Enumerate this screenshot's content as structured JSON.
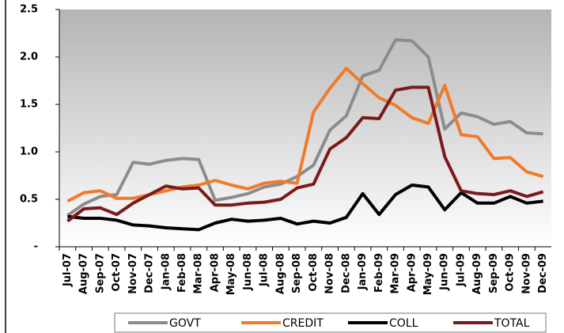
{
  "chart_data": {
    "type": "line",
    "categories": [
      "Jul-07",
      "Aug-07",
      "Sep-07",
      "Oct-07",
      "Nov-07",
      "Dec-07",
      "Jan-08",
      "Feb-08",
      "Mar-08",
      "Apr-08",
      "May-08",
      "Jun-08",
      "Jul-08",
      "Aug-08",
      "Sep-08",
      "Oct-08",
      "Nov-08",
      "Dec-08",
      "Jan-09",
      "Feb-09",
      "Mar-09",
      "Apr-09",
      "May-09",
      "Jun-09",
      "Jul-09",
      "Aug-09",
      "Sep-09",
      "Oct-09",
      "Nov-09",
      "Dec-09"
    ],
    "series": [
      {
        "name": "GOVT",
        "color": "#8c8c8c",
        "values": [
          0.33,
          0.45,
          0.53,
          0.55,
          0.89,
          0.87,
          0.91,
          0.93,
          0.92,
          0.49,
          0.52,
          0.56,
          0.63,
          0.66,
          0.74,
          0.86,
          1.23,
          1.38,
          1.8,
          1.86,
          2.18,
          2.17,
          2.0,
          1.24,
          1.41,
          1.37,
          1.29,
          1.32,
          1.2,
          1.19
        ]
      },
      {
        "name": "CREDIT",
        "color": "#f07b2a",
        "values": [
          0.48,
          0.57,
          0.59,
          0.51,
          0.51,
          0.55,
          0.59,
          0.63,
          0.65,
          0.7,
          0.65,
          0.61,
          0.67,
          0.69,
          0.67,
          1.42,
          1.67,
          1.88,
          1.72,
          1.57,
          1.49,
          1.36,
          1.3,
          1.7,
          1.18,
          1.16,
          0.93,
          0.94,
          0.79,
          0.74
        ]
      },
      {
        "name": "COLL",
        "color": "#000000",
        "values": [
          0.32,
          0.3,
          0.3,
          0.28,
          0.23,
          0.22,
          0.2,
          0.19,
          0.18,
          0.25,
          0.29,
          0.27,
          0.28,
          0.3,
          0.24,
          0.27,
          0.25,
          0.31,
          0.56,
          0.34,
          0.55,
          0.65,
          0.63,
          0.39,
          0.57,
          0.46,
          0.46,
          0.53,
          0.46,
          0.48
        ]
      },
      {
        "name": "TOTAL",
        "color": "#7a1a1a",
        "values": [
          0.27,
          0.4,
          0.41,
          0.34,
          0.46,
          0.55,
          0.64,
          0.61,
          0.62,
          0.44,
          0.44,
          0.46,
          0.47,
          0.5,
          0.62,
          0.66,
          1.03,
          1.15,
          1.36,
          1.35,
          1.65,
          1.68,
          1.68,
          0.95,
          0.59,
          0.56,
          0.55,
          0.59,
          0.53,
          0.58
        ]
      }
    ],
    "ylim": [
      0,
      2.5
    ],
    "yticks": [
      {
        "value": 0,
        "label": "-"
      },
      0.5,
      {
        "value": 1,
        "label": "1.0"
      },
      1.5,
      {
        "value": 2,
        "label": "2.0"
      },
      2.5
    ],
    "grid": false,
    "legend": "bottom"
  }
}
